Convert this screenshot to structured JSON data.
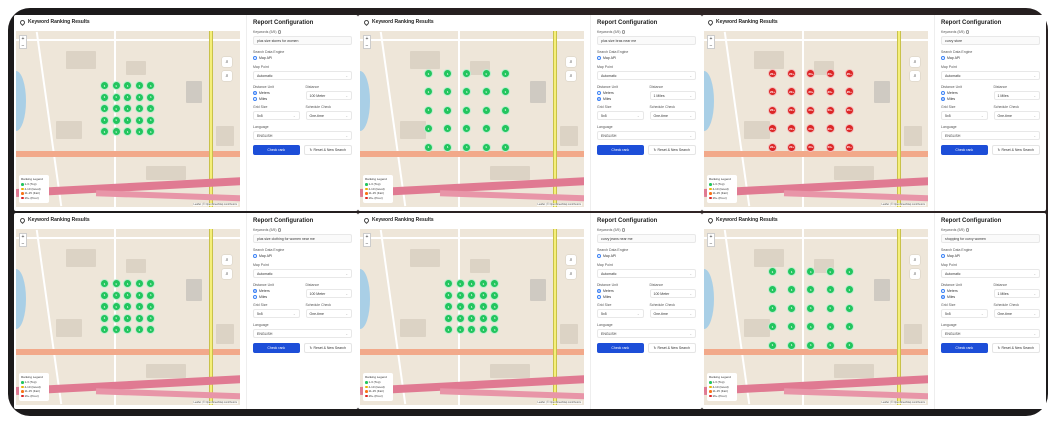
{
  "legend": {
    "title": "Ranking Legend",
    "items": [
      {
        "label": "1-3 (Top)",
        "color": "#22c55e"
      },
      {
        "label": "4-10 (Good)",
        "color": "#eab308"
      },
      {
        "label": "11-15 (Fair)",
        "color": "#f97316"
      },
      {
        "label": "16+ (Poor)",
        "color": "#dc2626"
      }
    ]
  },
  "common": {
    "map_title": "Keyword Ranking Results",
    "config_title": "Report Configuration",
    "keywords_label": "Keywords (5/5)",
    "engine_label": "Search Data Engine",
    "engine_option": "Map API",
    "map_point_label": "Map Point",
    "map_point_value": "Automatic",
    "distance_unit_label": "Distance Unit",
    "unit_meters": "Meters",
    "unit_miles": "Miles",
    "distance_label": "Distance",
    "grid_size_label": "Grid Size",
    "grid_size_value": "5x5",
    "schedule_label": "Schedule Check",
    "schedule_value": "One-time",
    "language_label": "Language",
    "language_value": "ENGLISH",
    "check_rank": "Check rank",
    "reset": "Reset & New Search",
    "zoom_in": "+",
    "zoom_out": "−",
    "attribution": "Leaflet | © OpenStreetMap contributors"
  },
  "panels": [
    {
      "keyword": "plus size stores for women",
      "unit": "meters",
      "distance": "100 Meter",
      "marker_color": "#22c55e",
      "marker_label": "1",
      "spacing": "tight"
    },
    {
      "keyword": "plus size bras near me",
      "unit": "miles",
      "distance": "1 Miles",
      "marker_color": "#22c55e",
      "marker_label": "1",
      "spacing": "wide"
    },
    {
      "keyword": "curvy store",
      "unit": "miles",
      "distance": "1 Miles",
      "marker_color": "#dc2626",
      "marker_label": "20+",
      "spacing": "wide"
    },
    {
      "keyword": "plus size clothing for women near me",
      "unit": "meters",
      "distance": "100 Meter",
      "marker_color": "#22c55e",
      "marker_label": "1",
      "spacing": "tight"
    },
    {
      "keyword": "curvy jeans near me",
      "unit": "meters",
      "distance": "100 Meter",
      "marker_color": "#22c55e",
      "marker_label": "1",
      "spacing": "tight"
    },
    {
      "keyword": "shopping for curvy women",
      "unit": "miles",
      "distance": "1 Miles",
      "marker_color": "#22c55e",
      "marker_label": "1",
      "spacing": "wide"
    }
  ]
}
